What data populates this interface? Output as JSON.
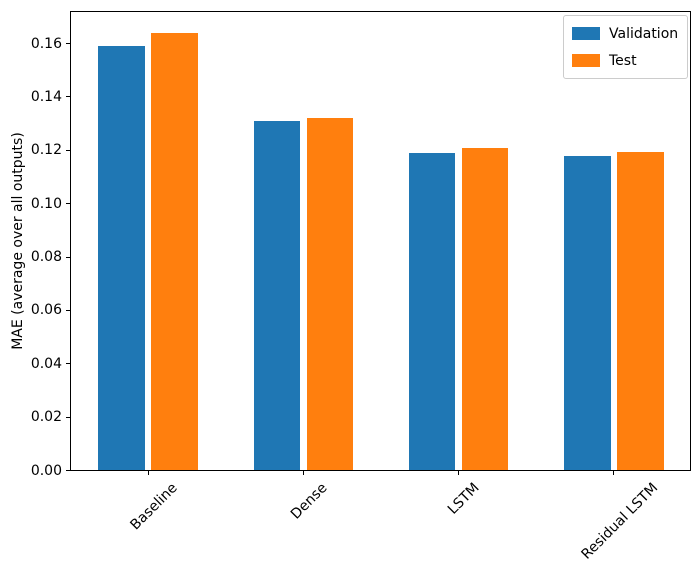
{
  "chart_data": {
    "type": "bar",
    "title": "",
    "xlabel": "",
    "ylabel": "MAE (average over all outputs)",
    "categories": [
      "Baseline",
      "Dense",
      "LSTM",
      "Residual LSTM"
    ],
    "series": [
      {
        "name": "Validation",
        "color": "#1f77b4",
        "values": [
          0.159,
          0.131,
          0.119,
          0.118
        ]
      },
      {
        "name": "Test",
        "color": "#ff7f0e",
        "values": [
          0.164,
          0.132,
          0.121,
          0.1195
        ]
      }
    ],
    "ylim": [
      0,
      0.1722
    ],
    "xlim": [
      -0.5,
      3.5
    ],
    "yticks": [
      0.0,
      0.02,
      0.04,
      0.06,
      0.08,
      0.1,
      0.12,
      0.14,
      0.16
    ],
    "ytick_decimals": 2,
    "bar_width_units": 0.3,
    "bar_offset_units": 0.17,
    "x_tick_rotation_deg": 45,
    "grid": false,
    "legend_position": "upper right",
    "axis_color": "#000000",
    "legend_border_color": "#cccccc",
    "background_color": "#ffffff"
  }
}
